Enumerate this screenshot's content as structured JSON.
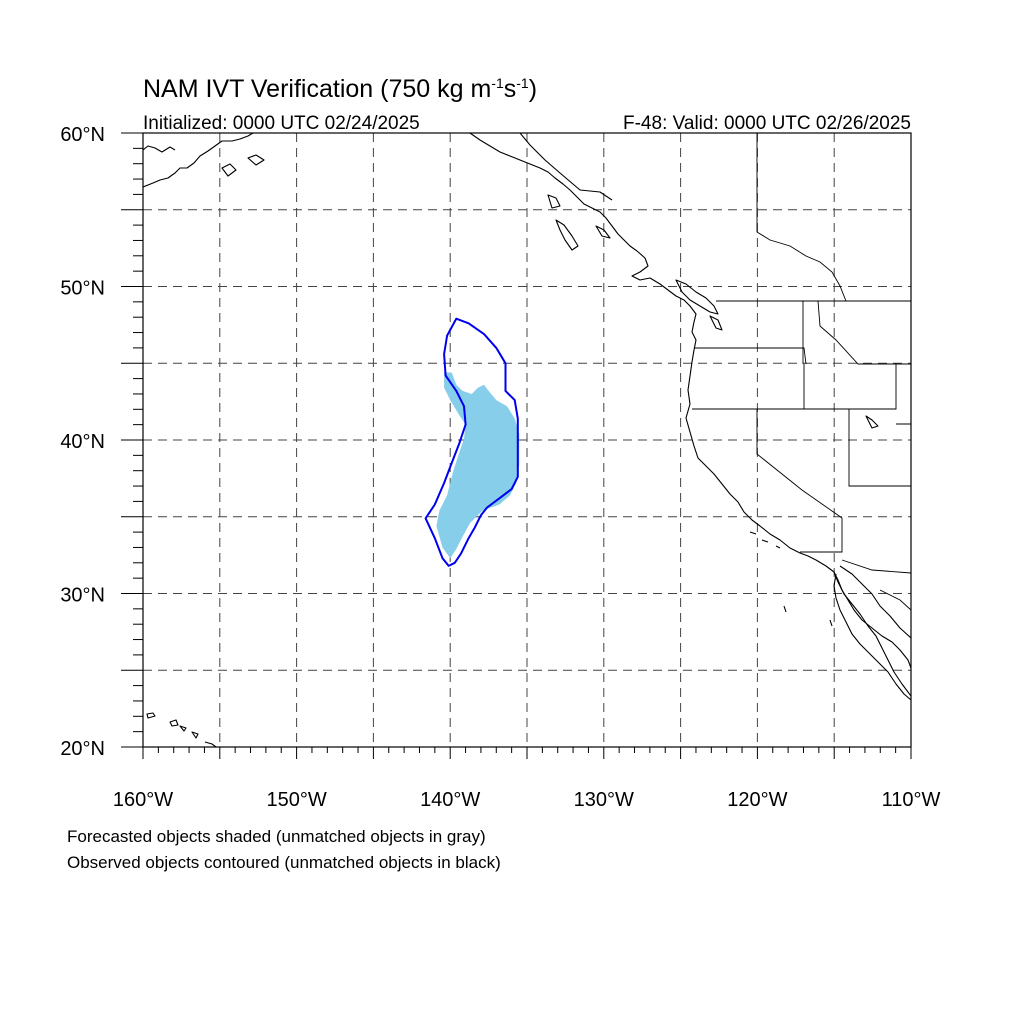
{
  "title": {
    "main": "NAM IVT Verification (750 kg m",
    "sup1": "-1",
    "mid": "s",
    "sup2": "-1",
    "end": ")"
  },
  "initialized": "Initialized: 0000 UTC 02/24/2025",
  "valid": "F-48: Valid: 0000 UTC 02/26/2025",
  "map": {
    "lon_range": [
      -160,
      -110
    ],
    "lat_range": [
      20,
      60
    ],
    "lon_ticks": [
      {
        "value": -160,
        "label": "160°W"
      },
      {
        "value": -150,
        "label": "150°W"
      },
      {
        "value": -140,
        "label": "140°W"
      },
      {
        "value": -130,
        "label": "130°W"
      },
      {
        "value": -120,
        "label": "120°W"
      },
      {
        "value": -110,
        "label": "110°W"
      }
    ],
    "lat_ticks": [
      {
        "value": 20,
        "label": "20°N"
      },
      {
        "value": 30,
        "label": "30°N"
      },
      {
        "value": 40,
        "label": "40°N"
      },
      {
        "value": 50,
        "label": "50°N"
      },
      {
        "value": 60,
        "label": "60°N"
      }
    ],
    "grid_lon": [
      -155,
      -150,
      -145,
      -140,
      -135,
      -130,
      -125,
      -120,
      -115
    ],
    "grid_lat": [
      25,
      30,
      35,
      40,
      45,
      50,
      55
    ],
    "grid": true,
    "colors": {
      "forecast_fill": "#87ceeb",
      "observed_contour": "#0000ee",
      "coast": "#000000",
      "grid": "#444444"
    },
    "forecast_object": [
      [
        -140.4,
        44.4
      ],
      [
        -139.9,
        44.4
      ],
      [
        -139.6,
        43.6
      ],
      [
        -139.2,
        43.2
      ],
      [
        -138.6,
        43.0
      ],
      [
        -138.2,
        43.4
      ],
      [
        -137.8,
        43.6
      ],
      [
        -137.5,
        43.2
      ],
      [
        -137.0,
        42.6
      ],
      [
        -136.3,
        42.2
      ],
      [
        -135.8,
        41.4
      ],
      [
        -135.5,
        40.4
      ],
      [
        -135.5,
        38.4
      ],
      [
        -135.7,
        37.2
      ],
      [
        -136.1,
        36.4
      ],
      [
        -136.8,
        35.8
      ],
      [
        -137.9,
        35.4
      ],
      [
        -138.7,
        34.6
      ],
      [
        -139.2,
        33.7
      ],
      [
        -139.6,
        32.9
      ],
      [
        -140.0,
        32.3
      ],
      [
        -140.5,
        33.0
      ],
      [
        -140.9,
        34.4
      ],
      [
        -140.7,
        35.4
      ],
      [
        -140.2,
        36.4
      ],
      [
        -139.8,
        38.0
      ],
      [
        -139.4,
        39.2
      ],
      [
        -139.1,
        40.1
      ],
      [
        -139.0,
        41.0
      ],
      [
        -139.4,
        41.6
      ],
      [
        -140.0,
        42.6
      ],
      [
        -140.4,
        43.4
      ]
    ],
    "observed_object": [
      [
        -139.6,
        47.9
      ],
      [
        -138.8,
        47.6
      ],
      [
        -137.8,
        46.9
      ],
      [
        -137.0,
        46.0
      ],
      [
        -136.4,
        45.0
      ],
      [
        -136.4,
        43.2
      ],
      [
        -135.8,
        42.6
      ],
      [
        -135.6,
        41.4
      ],
      [
        -135.6,
        37.6
      ],
      [
        -136.0,
        36.8
      ],
      [
        -136.8,
        36.2
      ],
      [
        -137.6,
        35.6
      ],
      [
        -138.0,
        35.1
      ],
      [
        -138.4,
        34.3
      ],
      [
        -138.8,
        33.6
      ],
      [
        -139.3,
        32.6
      ],
      [
        -139.7,
        32.0
      ],
      [
        -140.1,
        31.8
      ],
      [
        -140.5,
        32.3
      ],
      [
        -141.0,
        33.6
      ],
      [
        -141.6,
        34.9
      ],
      [
        -141.0,
        35.8
      ],
      [
        -140.4,
        37.2
      ],
      [
        -139.9,
        38.5
      ],
      [
        -139.4,
        39.8
      ],
      [
        -139.0,
        41.0
      ],
      [
        -139.1,
        42.2
      ],
      [
        -139.6,
        43.2
      ],
      [
        -140.3,
        44.2
      ],
      [
        -140.4,
        45.6
      ],
      [
        -140.2,
        46.8
      ]
    ]
  },
  "caption": {
    "line1": "Forecasted objects shaded (unmatched objects in gray)",
    "line2": "Observed objects contoured (unmatched objects in black)"
  }
}
